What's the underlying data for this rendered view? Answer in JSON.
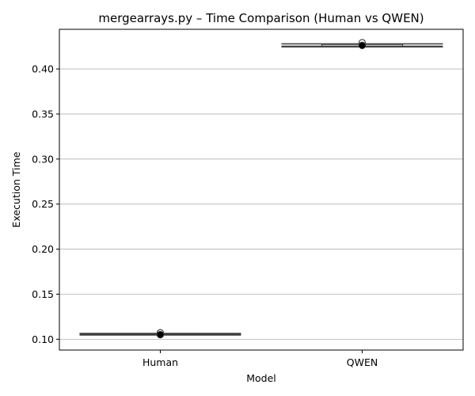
{
  "chart_data": {
    "type": "box",
    "title": "mergearrays.py – Time Comparison (Human vs QWEN)",
    "xlabel": "Model",
    "ylabel": "Execution Time",
    "categories": [
      "Human",
      "QWEN"
    ],
    "ylim": [
      0.088,
      0.444
    ],
    "yticks": [
      0.1,
      0.15,
      0.2,
      0.25,
      0.3,
      0.35,
      0.4
    ],
    "ytick_labels": [
      "0.10",
      "0.15",
      "0.20",
      "0.25",
      "0.30",
      "0.35",
      "0.40"
    ],
    "grid": "horizontal",
    "series": [
      {
        "category": "Human",
        "whisker_low": 0.1047,
        "q1": 0.1049,
        "median": 0.1052,
        "q3": 0.1062,
        "whisker_high": 0.1065,
        "mean": 0.1052,
        "outliers": [
          0.1072,
          0.105
        ]
      },
      {
        "category": "QWEN",
        "whisker_low": 0.4245,
        "q1": 0.4248,
        "median": 0.425,
        "q3": 0.4272,
        "whisker_high": 0.4278,
        "mean": 0.4258,
        "outliers": [
          0.4292,
          0.4262
        ]
      }
    ],
    "colors": {
      "box_edge": "#3d3d3d",
      "box_fill": "#ffffff",
      "grid": "#b0b0b0",
      "mean_marker": "#000000",
      "axis": "#000000"
    }
  }
}
